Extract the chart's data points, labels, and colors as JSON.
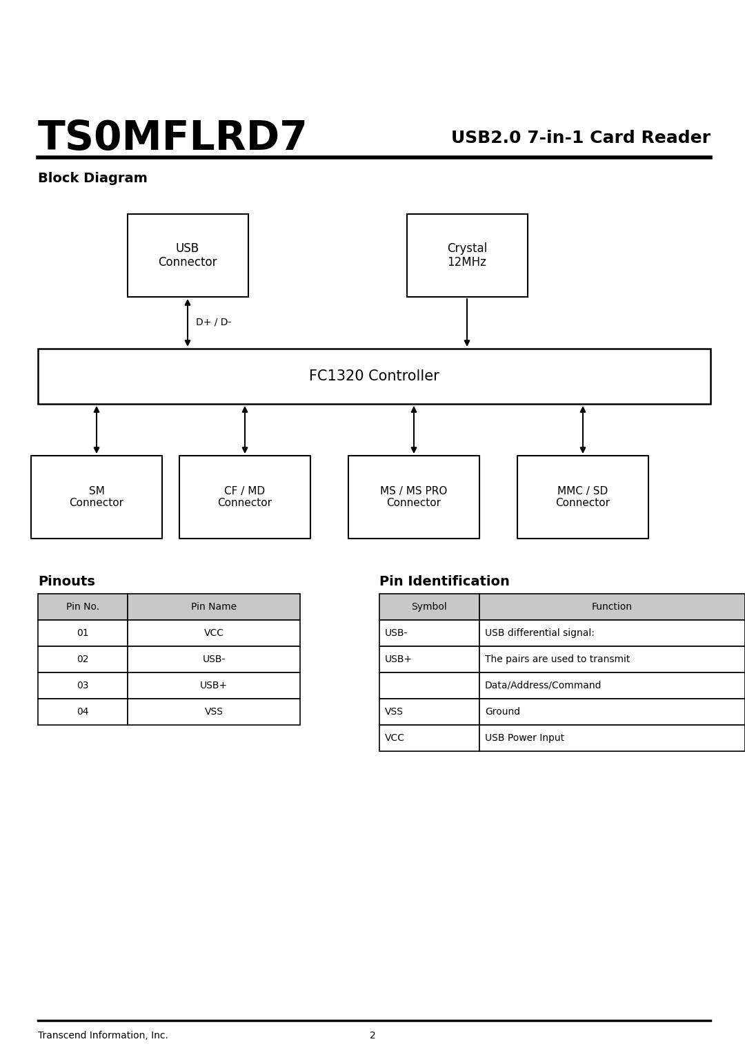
{
  "title": "TS0MFLRD7",
  "subtitle": "USB2.0 7-in-1 Card Reader",
  "section1": "Block Diagram",
  "section2": "Pinouts",
  "section3": "Pin Identification",
  "bg_color": "#ffffff",
  "text_color": "#000000",
  "header_fill": "#c8c8c8",
  "pinouts_table": {
    "headers": [
      "Pin No.",
      "Pin Name"
    ],
    "rows": [
      [
        "01",
        "VCC"
      ],
      [
        "02",
        "USB-"
      ],
      [
        "03",
        "USB+"
      ],
      [
        "04",
        "VSS"
      ]
    ]
  },
  "pin_id_table": {
    "headers": [
      "Symbol",
      "Function"
    ],
    "rows": [
      [
        "USB-",
        "USB differential signal:"
      ],
      [
        "USB+",
        "The pairs are used to transmit"
      ],
      [
        "",
        "Data/Address/Command"
      ],
      [
        "VSS",
        "Ground"
      ],
      [
        "VCC",
        "USB Power Input"
      ]
    ]
  },
  "footer": "Transcend Information, Inc.",
  "page_num": "2",
  "block_diagram": {
    "usb_connector": "USB\nConnector",
    "crystal": "Crystal\n12MHz",
    "controller": "FC1320 Controller",
    "sm": "SM\nConnector",
    "cf": "CF / MD\nConnector",
    "ms": "MS / MS PRO\nConnector",
    "mmc": "MMC / SD\nConnector",
    "dp_dm_label": "D+ / D-"
  }
}
